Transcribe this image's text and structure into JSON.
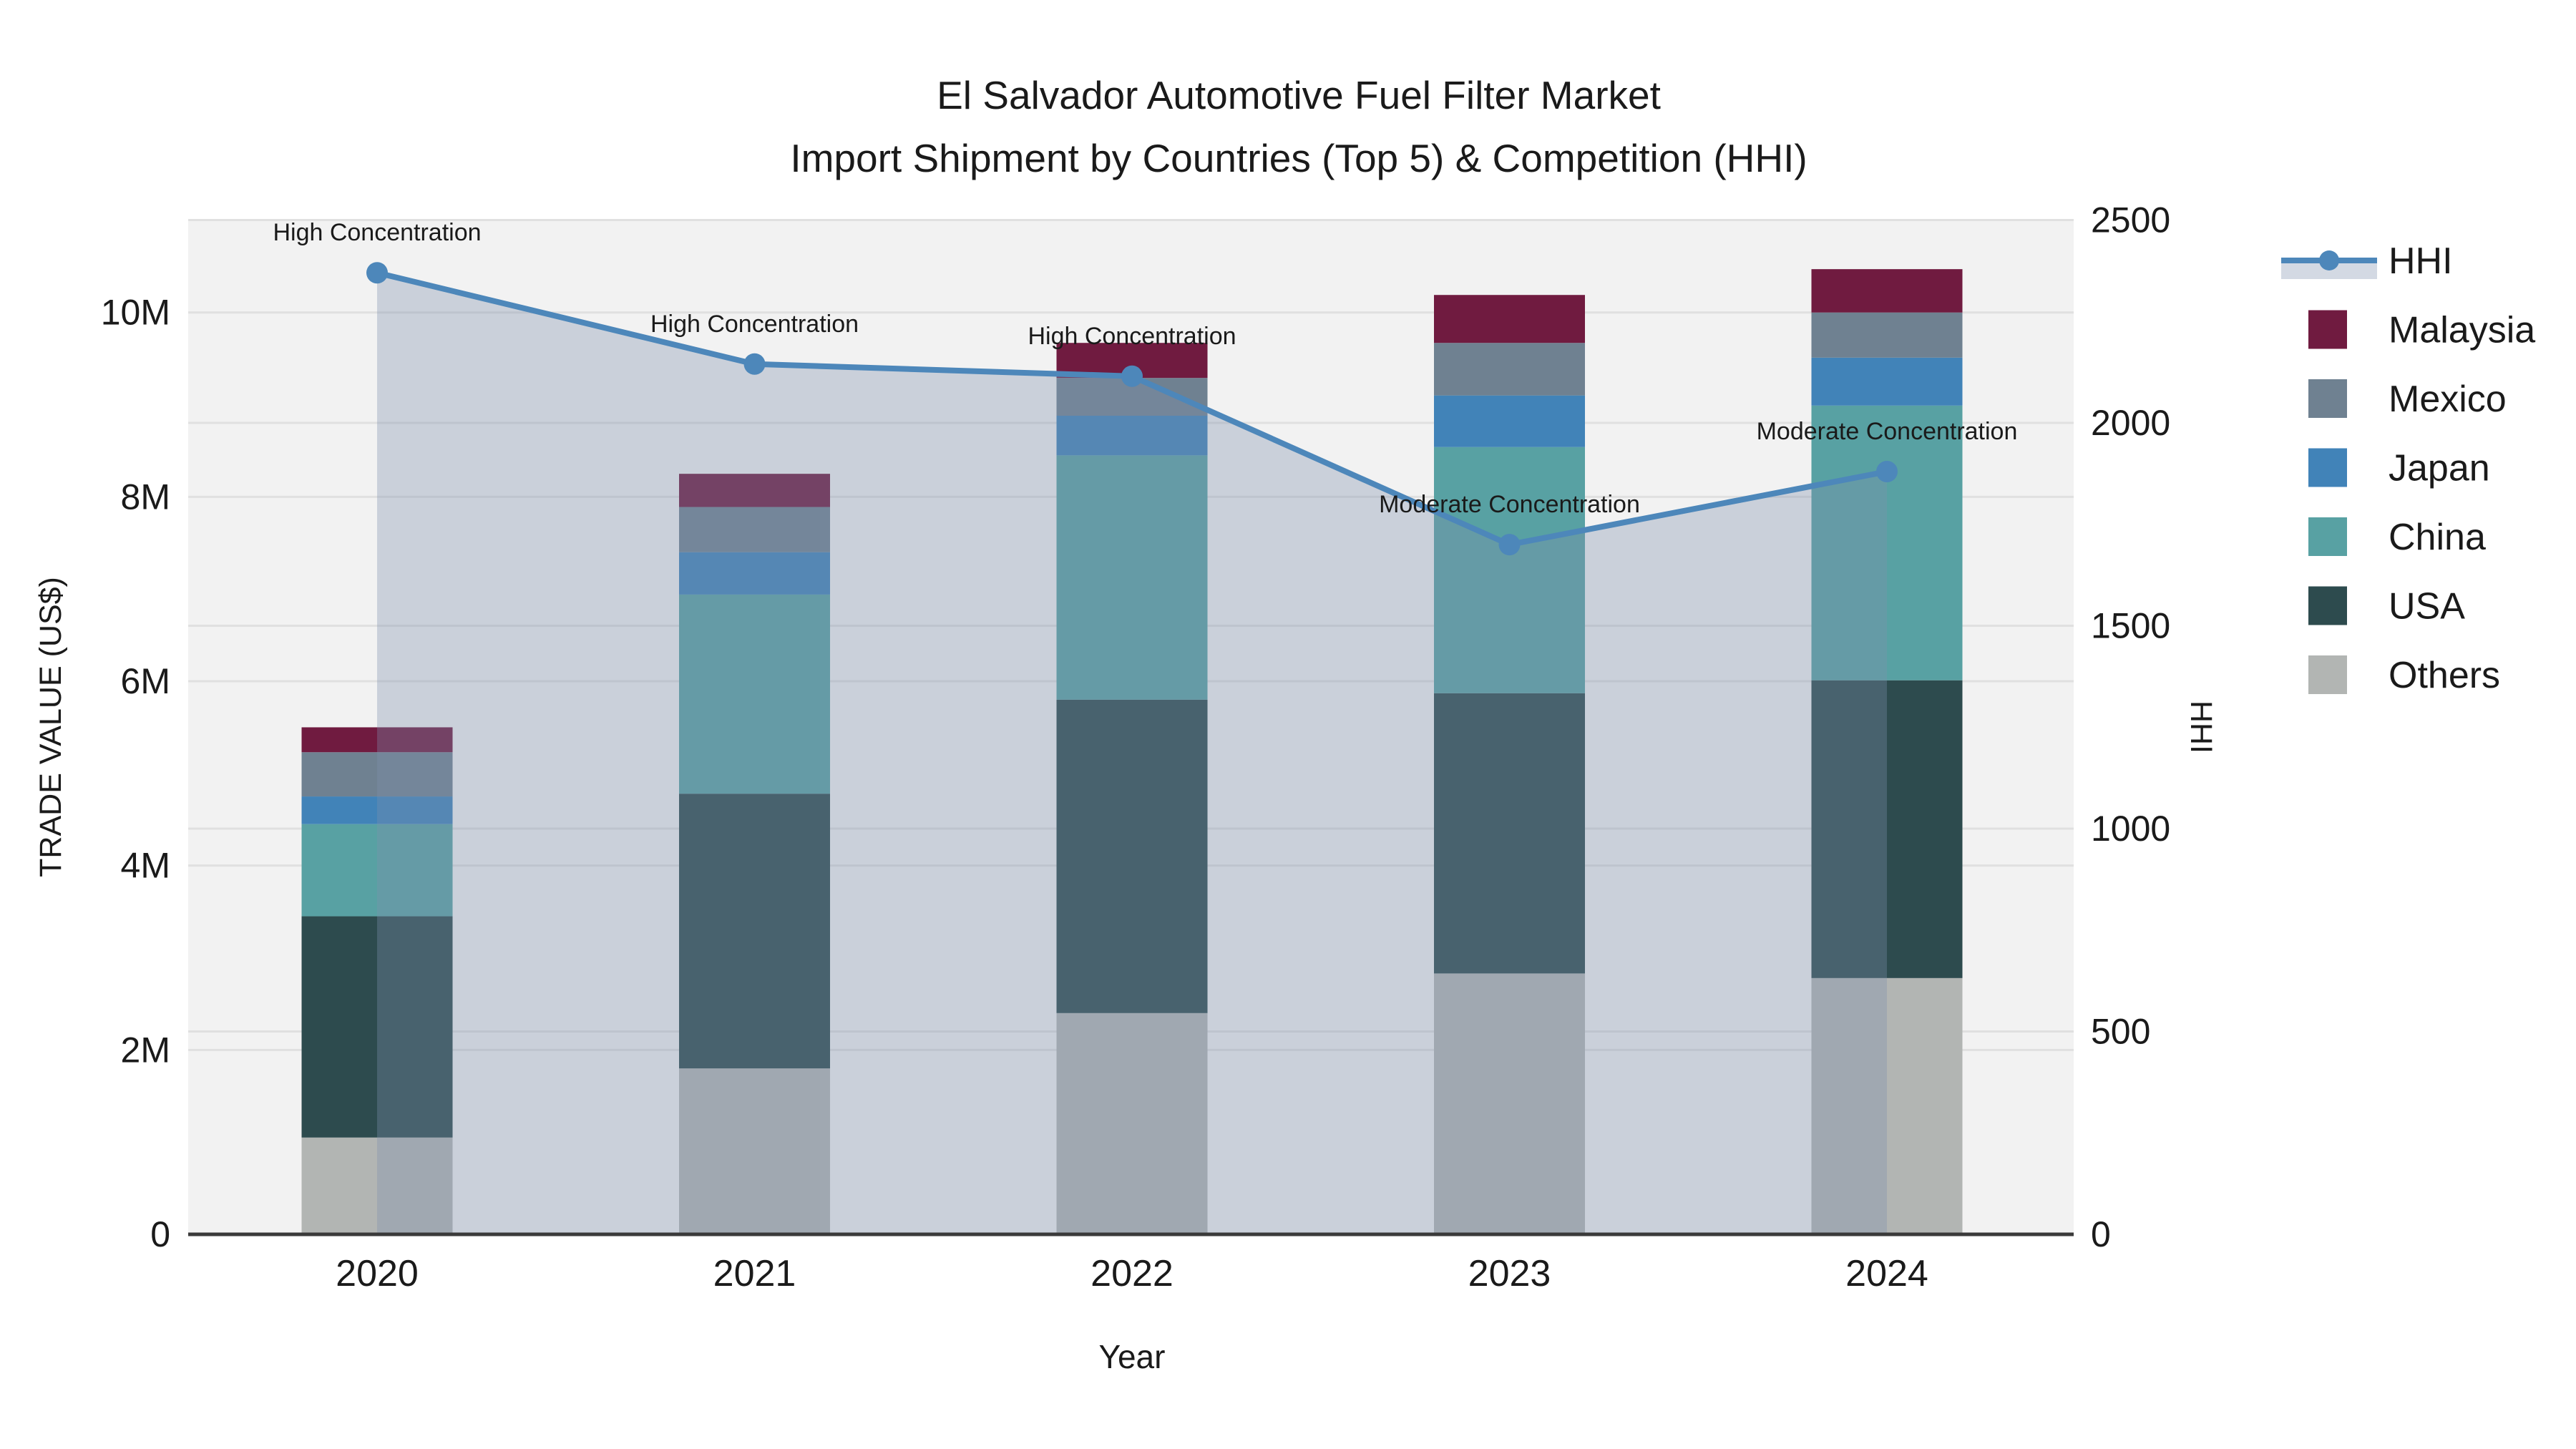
{
  "chart_data": {
    "type": "bar+line",
    "title": "El Salvador Automotive Fuel Filter Market",
    "subtitle": "Import Shipment by Countries (Top 5) & Competition (HHI)",
    "xlabel": "Year",
    "ylabel_left": "TRADE VALUE (US$)",
    "ylabel_right": "HHI",
    "categories": [
      "2020",
      "2021",
      "2022",
      "2023",
      "2024"
    ],
    "stack_order_bottom_to_top": [
      "Others",
      "USA",
      "China",
      "Japan",
      "Mexico",
      "Malaysia"
    ],
    "series": [
      {
        "name": "Others",
        "color": "#b2b5b3",
        "values_musd": [
          1.05,
          1.8,
          2.4,
          2.83,
          2.78
        ]
      },
      {
        "name": "USA",
        "color": "#2d4b4e",
        "values_musd": [
          2.4,
          2.98,
          3.4,
          3.04,
          3.23
        ]
      },
      {
        "name": "China",
        "color": "#58a1a3",
        "values_musd": [
          1.0,
          2.16,
          2.65,
          2.67,
          2.98
        ]
      },
      {
        "name": "Japan",
        "color": "#4183b8",
        "values_musd": [
          0.3,
          0.46,
          0.43,
          0.56,
          0.52
        ]
      },
      {
        "name": "Mexico",
        "color": "#6f8191",
        "values_musd": [
          0.48,
          0.49,
          0.41,
          0.57,
          0.49
        ]
      },
      {
        "name": "Malaysia",
        "color": "#701b40",
        "values_musd": [
          0.27,
          0.36,
          0.38,
          0.52,
          0.47
        ]
      }
    ],
    "bar_totals_musd": [
      5.5,
      8.25,
      9.67,
      10.19,
      10.47
    ],
    "hhi": {
      "name": "HHI",
      "line_color": "#4d87ba",
      "area_color": "rgba(125,143,172,0.34)",
      "values": [
        2370,
        2145,
        2115,
        1700,
        1880
      ],
      "annotations": [
        "High Concentration",
        "High Concentration",
        "High Concentration",
        "Moderate Concentration",
        "Moderate Concentration"
      ]
    },
    "left_axis_ticks": [
      {
        "v": 0,
        "label": "0"
      },
      {
        "v": 2,
        "label": "2M"
      },
      {
        "v": 4,
        "label": "4M"
      },
      {
        "v": 6,
        "label": "6M"
      },
      {
        "v": 8,
        "label": "8M"
      },
      {
        "v": 10,
        "label": "10M"
      }
    ],
    "right_axis_ticks": [
      {
        "v": 0,
        "label": "0"
      },
      {
        "v": 500,
        "label": "500"
      },
      {
        "v": 1000,
        "label": "1000"
      },
      {
        "v": 1500,
        "label": "1500"
      },
      {
        "v": 2000,
        "label": "2000"
      },
      {
        "v": 2500,
        "label": "2500"
      }
    ],
    "ylim_left_musd": [
      0,
      11
    ],
    "ylim_right": [
      0,
      2500
    ],
    "grid": true,
    "legend_position": "right",
    "legend_order": [
      "HHI",
      "Malaysia",
      "Mexico",
      "Japan",
      "China",
      "USA",
      "Others"
    ]
  },
  "colors": {
    "plot_bg": "#f2f2f2",
    "grid": "#e0e0e0",
    "axis_line": "#3a3a3a",
    "text": "#1a1a1a"
  }
}
